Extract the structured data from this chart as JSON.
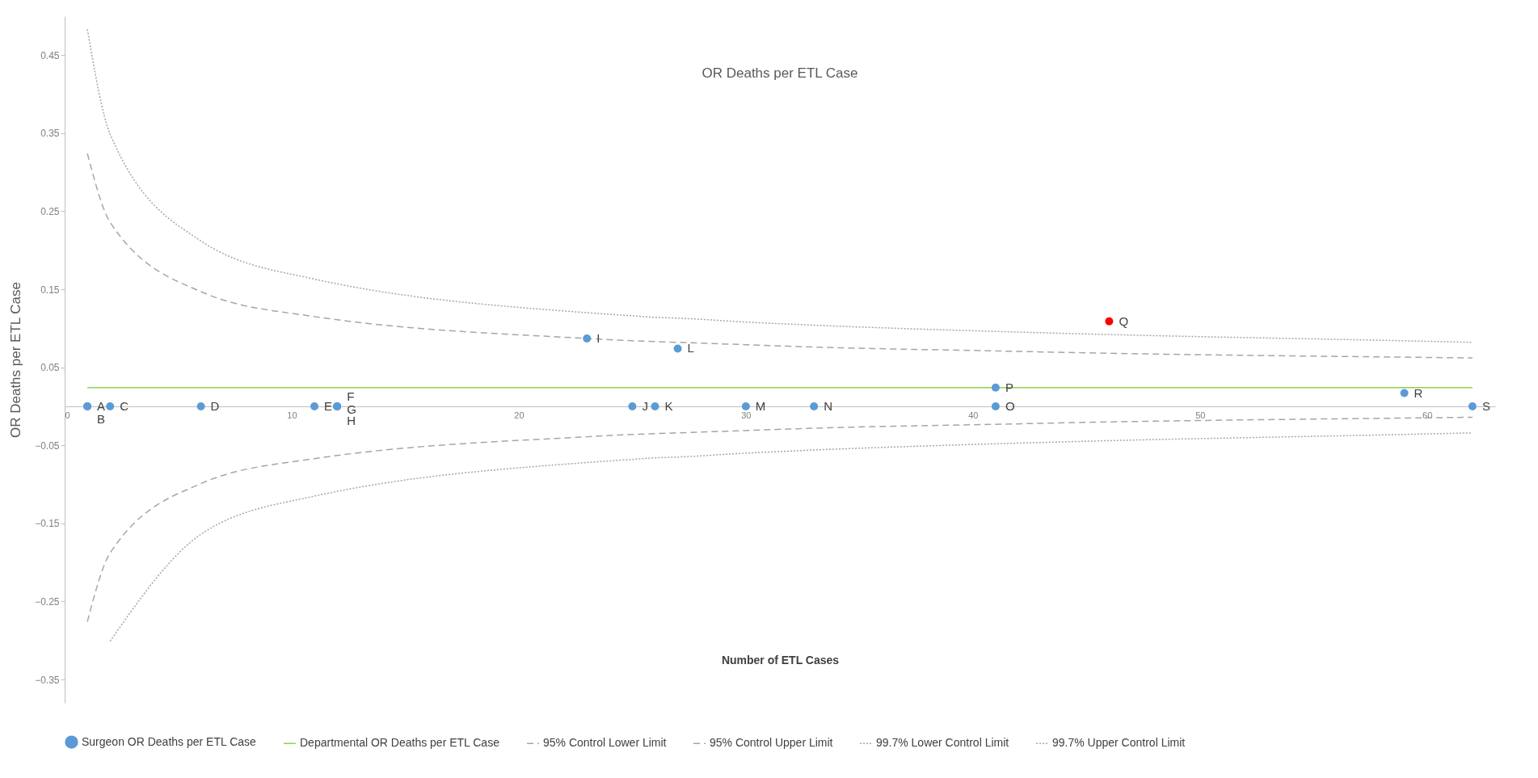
{
  "chart_data": {
    "type": "scatter",
    "title": "OR Deaths per ETL Case",
    "xlabel": "Number of ETL Cases",
    "ylabel": "OR Deaths per ETL Case",
    "xlim": [
      0,
      63
    ],
    "ylim": [
      -0.38,
      0.5
    ],
    "xticks": [
      0,
      10,
      20,
      30,
      40,
      50,
      60
    ],
    "yticks": [
      -0.35,
      -0.25,
      -0.15,
      -0.05,
      0.05,
      0.15,
      0.25,
      0.35,
      0.45
    ],
    "grid": false,
    "legend": "bottom",
    "x": [
      1,
      1,
      2,
      6,
      11,
      12,
      12,
      12,
      23,
      25,
      26,
      27,
      30,
      33,
      41,
      41,
      46,
      59,
      62
    ],
    "series": [
      {
        "name": "Surgeon OR Deaths per ETL Case",
        "type": "scatter",
        "marker": "circle",
        "colors": [
          "#5b9bd5",
          "#5b9bd5",
          "#5b9bd5",
          "#5b9bd5",
          "#5b9bd5",
          "#5b9bd5",
          "#5b9bd5",
          "#5b9bd5",
          "#5b9bd5",
          "#5b9bd5",
          "#5b9bd5",
          "#5b9bd5",
          "#5b9bd5",
          "#5b9bd5",
          "#5b9bd5",
          "#5b9bd5",
          "#ff0000",
          "#5b9bd5",
          "#5b9bd5"
        ],
        "color": "#5b9bd5",
        "values": [
          0,
          0,
          0,
          0,
          0,
          0,
          0,
          0,
          0.087,
          0,
          0,
          0.074,
          0,
          0,
          0,
          0.024,
          0.109,
          0.017,
          0
        ]
      },
      {
        "name": "Departmental OR Deaths per ETL Case",
        "type": "line",
        "line_style": "solid",
        "color": "#92d050",
        "x": [
          1,
          62
        ],
        "values": [
          0.024,
          0.024
        ]
      },
      {
        "name": "95% Control Lower Limit",
        "type": "line",
        "line_style": "dashed",
        "color": "#a6a6a6",
        "x": [
          1,
          2,
          6,
          11,
          12,
          23,
          25,
          26,
          27,
          30,
          33,
          41,
          46,
          59,
          62
        ],
        "values": [
          -0.276,
          -0.188,
          -0.099,
          -0.067,
          -0.063,
          -0.039,
          -0.036,
          -0.035,
          -0.034,
          -0.031,
          -0.028,
          -0.023,
          -0.02,
          -0.015,
          -0.014
        ]
      },
      {
        "name": "95% Control Upper Limit",
        "type": "line",
        "line_style": "dashed",
        "color": "#a6a6a6",
        "x": [
          1,
          2,
          6,
          11,
          12,
          23,
          25,
          26,
          27,
          30,
          33,
          41,
          46,
          59,
          62
        ],
        "values": [
          0.324,
          0.236,
          0.147,
          0.115,
          0.111,
          0.087,
          0.084,
          0.083,
          0.082,
          0.079,
          0.076,
          0.071,
          0.068,
          0.063,
          0.062
        ]
      },
      {
        "name": "99.7% Lower Control Limit",
        "type": "line",
        "line_style": "dotted",
        "color": "#a6a6a6",
        "x": [
          2,
          6,
          11,
          12,
          23,
          25,
          26,
          27,
          30,
          33,
          41,
          46,
          59,
          62
        ],
        "values": [
          -0.301,
          -0.164,
          -0.115,
          -0.109,
          -0.072,
          -0.068,
          -0.066,
          -0.065,
          -0.06,
          -0.056,
          -0.048,
          -0.044,
          -0.036,
          -0.034
        ]
      },
      {
        "name": "99.7% Upper Control Limit",
        "type": "line",
        "line_style": "dotted",
        "color": "#a6a6a6",
        "x": [
          1,
          2,
          6,
          11,
          12,
          23,
          25,
          26,
          27,
          30,
          33,
          41,
          46,
          59,
          62
        ],
        "values": [
          0.483,
          0.349,
          0.212,
          0.163,
          0.157,
          0.12,
          0.116,
          0.114,
          0.113,
          0.108,
          0.104,
          0.096,
          0.092,
          0.084,
          0.082
        ]
      }
    ],
    "annotations": [
      {
        "text": "A",
        "x": 1,
        "y": 0
      },
      {
        "text": "B",
        "x": 1,
        "y": 0
      },
      {
        "text": "C",
        "x": 2,
        "y": 0
      },
      {
        "text": "D",
        "x": 6,
        "y": 0
      },
      {
        "text": "E",
        "x": 11,
        "y": 0
      },
      {
        "text": "F",
        "x": 12,
        "y": 0
      },
      {
        "text": "G",
        "x": 12,
        "y": 0
      },
      {
        "text": "H",
        "x": 12,
        "y": 0
      },
      {
        "text": "I",
        "x": 23,
        "y": 0.087
      },
      {
        "text": "J",
        "x": 25,
        "y": 0
      },
      {
        "text": "K",
        "x": 26,
        "y": 0
      },
      {
        "text": "L",
        "x": 27,
        "y": 0.074
      },
      {
        "text": "M",
        "x": 30,
        "y": 0
      },
      {
        "text": "N",
        "x": 33,
        "y": 0
      },
      {
        "text": "O",
        "x": 41,
        "y": 0
      },
      {
        "text": "P",
        "x": 41,
        "y": 0.024
      },
      {
        "text": "Q",
        "x": 46,
        "y": 0.109
      },
      {
        "text": "R",
        "x": 59,
        "y": 0.017
      },
      {
        "text": "S",
        "x": 62,
        "y": 0
      }
    ]
  }
}
